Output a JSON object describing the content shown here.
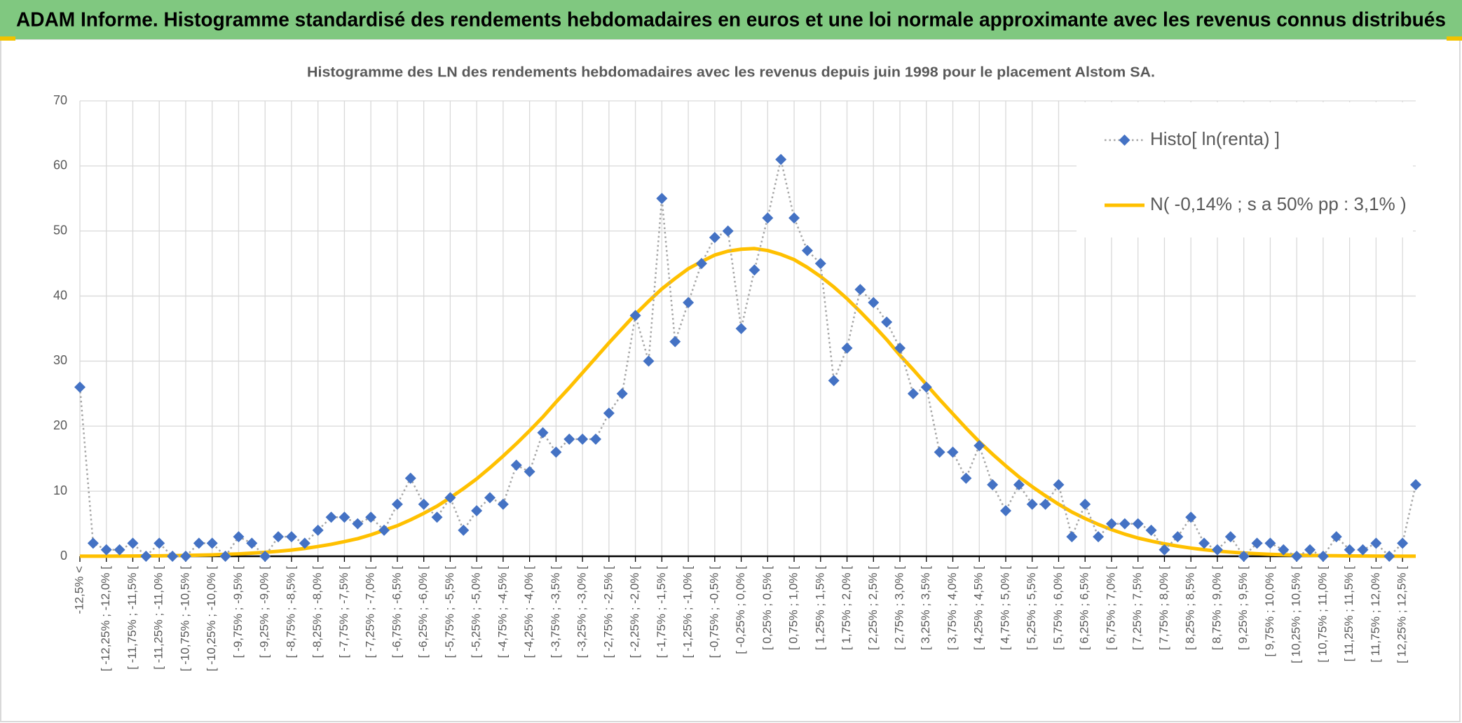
{
  "header": {
    "title": "ADAM Informe. Histogramme standardisé des rendements hebdomadaires en euros et une loi normale approximante avec les revenus connus distribués"
  },
  "chart_data": {
    "type": "line",
    "title": "Histogramme des LN des rendements hebdomadaires avec les revenus depuis juin 1998 pour le placement Alstom SA.",
    "categories": [
      "-12,5% <",
      null,
      "[ -12,25% ; -12,0% [",
      null,
      "[ -11,75% ; -11,5% [",
      null,
      "[ -11,25% ; -11,0% [",
      null,
      "[ -10,75% ; -10,5% [",
      null,
      "[ -10,25% ; -10,0% [",
      null,
      "[ -9,75% ; -9,5% [",
      null,
      "[ -9,25% ; -9,0% [",
      null,
      "[ -8,75% ; -8,5% [",
      null,
      "[ -8,25% ; -8,0% [",
      null,
      "[ -7,75% ; -7,5% [",
      null,
      "[ -7,25% ; -7,0% [",
      null,
      "[ -6,75% ; -6,5% [",
      null,
      "[ -6,25% ; -6,0% [",
      null,
      "[ -5,75% ; -5,5% [",
      null,
      "[ -5,25% ; -5,0% [",
      null,
      "[ -4,75% ; -4,5% [",
      null,
      "[ -4,25% ; -4,0% [",
      null,
      "[ -3,75% ; -3,5% [",
      null,
      "[ -3,25% ; -3,0% [",
      null,
      "[ -2,75% ; -2,5% [",
      null,
      "[ -2,25% ; -2,0% [",
      null,
      "[ -1,75% ; -1,5% [",
      null,
      "[ -1,25% ; -1,0% [",
      null,
      "[ -0,75% ; -0,5% [",
      null,
      "[ -0,25% ; 0,0% [",
      null,
      "[ 0,25% ; 0,5% [",
      null,
      "[ 0,75% ; 1,0% [",
      null,
      "[ 1,25% ; 1,5% [",
      null,
      "[ 1,75% ; 2,0% [",
      null,
      "[ 2,25% ; 2,5% [",
      null,
      "[ 2,75% ; 3,0% [",
      null,
      "[ 3,25% ; 3,5% [",
      null,
      "[ 3,75% ; 4,0% [",
      null,
      "[ 4,25% ; 4,5% [",
      null,
      "[ 4,75% ; 5,0% [",
      null,
      "[ 5,25% ; 5,5% [",
      null,
      "[ 5,75% ; 6,0% [",
      null,
      "[ 6,25% ; 6,5% [",
      null,
      "[ 6,75% ; 7,0% [",
      null,
      "[ 7,25% ; 7,5% [",
      null,
      "[ 7,75% ; 8,0% [",
      null,
      "[ 8,25% ; 8,5% [",
      null,
      "[ 8,75% ; 9,0% [",
      null,
      "[ 9,25% ; 9,5% [",
      null,
      "[ 9,75% ; 10,0% [",
      null,
      "[ 10,25% ; 10,5% [",
      null,
      "[ 10,75% ; 11,0% [",
      null,
      "[ 11,25% ; 11,5% [",
      null,
      "[ 11,75% ; 12,0% [",
      null,
      "[ 12,25% ; 12,5% [",
      null
    ],
    "series": [
      {
        "name": "Histo[ ln(renta) ]",
        "color": "#4472c4",
        "line_color": "#a6a6a6",
        "marker": "diamond",
        "values": [
          26,
          2,
          1,
          1,
          2,
          0,
          2,
          0,
          0,
          2,
          2,
          0,
          3,
          2,
          0,
          3,
          3,
          2,
          4,
          6,
          6,
          5,
          6,
          4,
          8,
          12,
          8,
          6,
          9,
          4,
          7,
          9,
          8,
          14,
          13,
          19,
          16,
          18,
          18,
          18,
          22,
          25,
          37,
          30,
          55,
          33,
          39,
          45,
          49,
          50,
          35,
          44,
          52,
          61,
          52,
          47,
          45,
          27,
          32,
          41,
          39,
          36,
          32,
          25,
          26,
          16,
          16,
          12,
          17,
          11,
          7,
          11,
          8,
          8,
          11,
          3,
          8,
          3,
          5,
          5,
          5,
          4,
          1,
          3,
          6,
          2,
          1,
          3,
          0,
          2,
          2,
          1,
          0,
          1,
          0,
          3,
          1,
          1,
          2,
          0,
          2,
          11
        ]
      },
      {
        "name": "N( -0,14% ; s a 50% pp : 3,1% )",
        "color": "#ffc000",
        "marker": "none",
        "values": [
          0.01,
          0.02,
          0.02,
          0.03,
          0.04,
          0.05,
          0.07,
          0.1,
          0.13,
          0.17,
          0.22,
          0.29,
          0.37,
          0.48,
          0.61,
          0.77,
          0.96,
          1.2,
          1.5,
          1.84,
          2.25,
          2.7,
          3.3,
          4.0,
          4.7,
          5.6,
          6.6,
          7.7,
          9.0,
          10.4,
          11.9,
          13.6,
          15.4,
          17.3,
          19.3,
          21.4,
          23.7,
          25.9,
          28.2,
          30.5,
          32.8,
          35.0,
          37.2,
          39.2,
          41.1,
          42.7,
          44.2,
          45.3,
          46.3,
          46.9,
          47.2,
          47.3,
          47.0,
          46.4,
          45.6,
          44.4,
          43.0,
          41.4,
          39.6,
          37.6,
          35.5,
          33.3,
          30.9,
          28.7,
          26.4,
          24.1,
          21.9,
          19.7,
          17.6,
          15.7,
          13.9,
          12.2,
          10.7,
          9.3,
          8.0,
          6.8,
          5.8,
          4.9,
          4.1,
          3.4,
          2.8,
          2.34,
          1.91,
          1.56,
          1.26,
          1.01,
          0.8,
          0.64,
          0.5,
          0.39,
          0.3,
          0.23,
          0.18,
          0.14,
          0.1,
          0.08,
          0.06,
          0.04,
          0.03,
          0.02,
          0.02,
          0.01
        ]
      }
    ],
    "ylim": [
      0,
      70
    ],
    "yticks": [
      0,
      10,
      20,
      30,
      40,
      50,
      60,
      70
    ],
    "grid": true,
    "legend": "top-right"
  }
}
